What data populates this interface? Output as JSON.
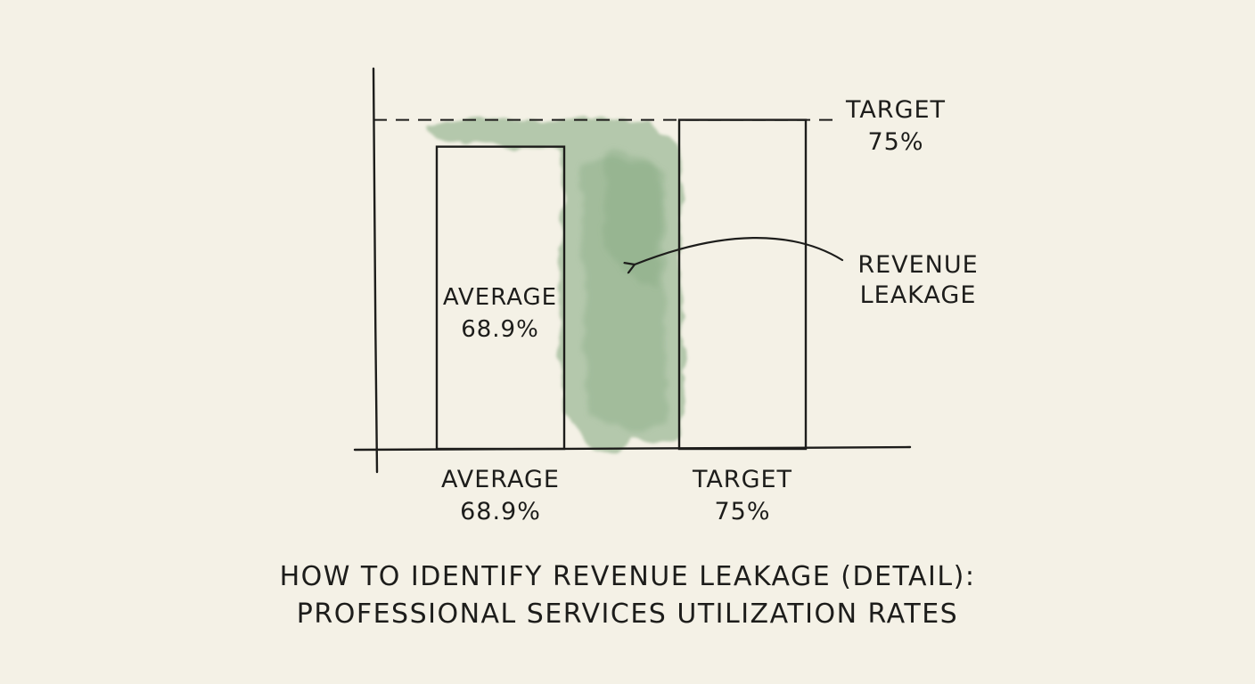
{
  "chart_data": {
    "type": "bar",
    "categories": [
      "AVERAGE",
      "TARGET"
    ],
    "values": [
      68.9,
      75
    ],
    "ylim": [
      0,
      80
    ],
    "grid": false,
    "legend": "none",
    "bar_value_labels": [
      "68.9%",
      "75%"
    ],
    "inner_label": {
      "name": "AVERAGE",
      "value": "68.9%"
    },
    "target_line": {
      "value": 75,
      "name": "TARGET",
      "value_text": "75%"
    },
    "annotation": {
      "line1": "REVENUE",
      "line2": "LEAKAGE"
    },
    "title_line1": "HOW TO IDENTIFY REVENUE LEAKAGE (DETAIL):",
    "title_line2": "PROFESSIONAL SERVICES UTILIZATION RATES",
    "colors": {
      "ink": "#1d1d1b",
      "wash": "#7fa57c",
      "paper": "#f4f1e6"
    }
  }
}
